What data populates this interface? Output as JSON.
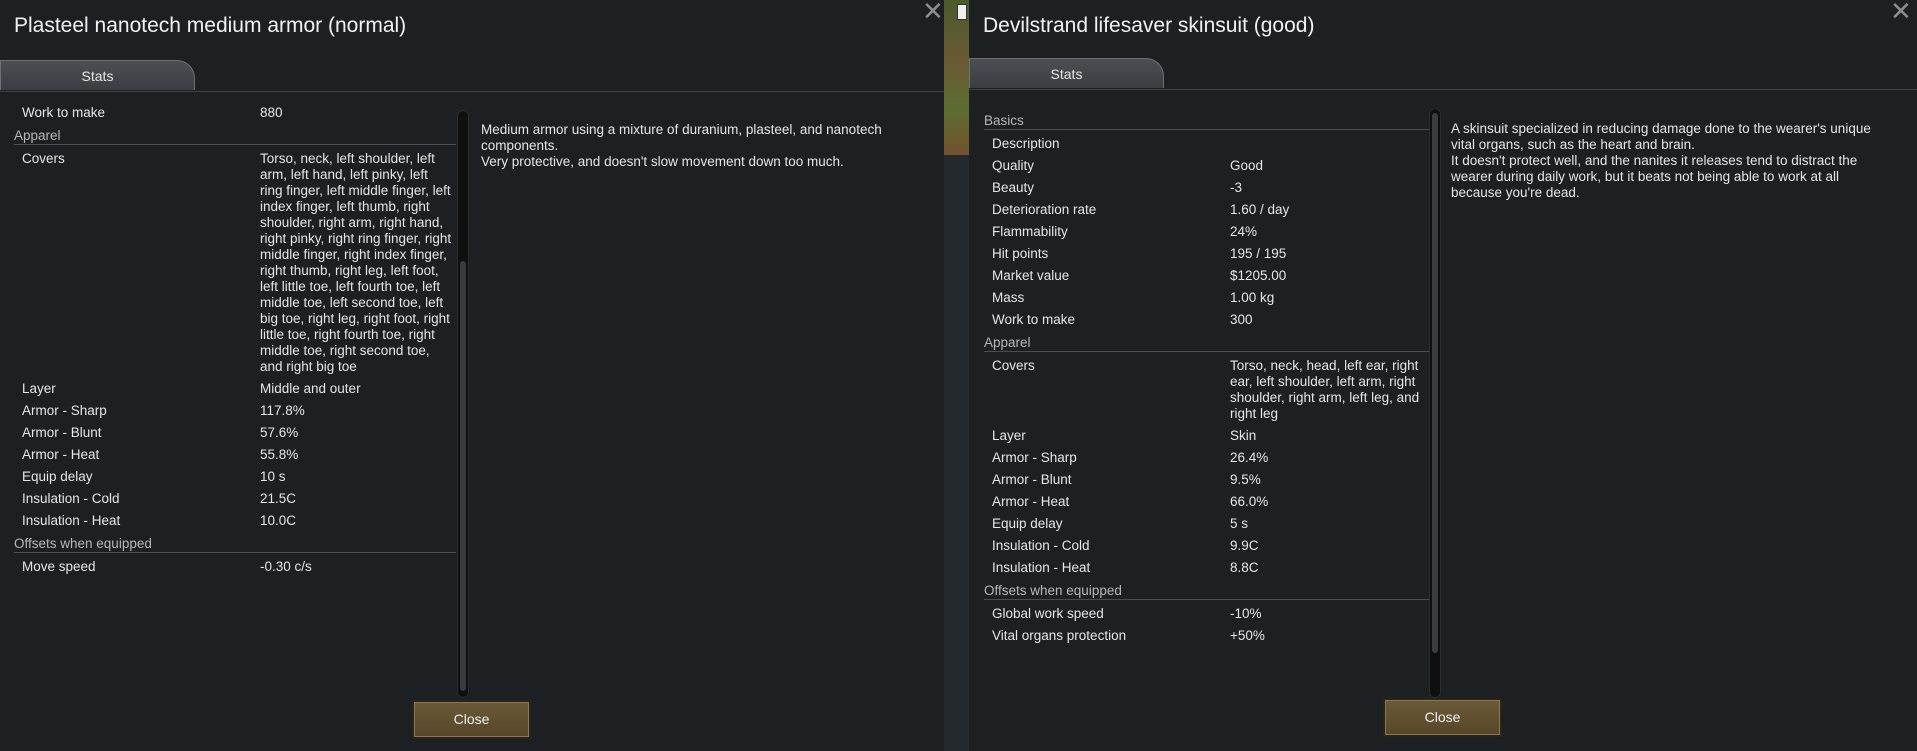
{
  "left": {
    "title": "Plasteel nanotech medium armor (normal)",
    "tab": "Stats",
    "close_label": "Close",
    "close_x": "✕",
    "description": [
      "Medium armor using a mixture of duranium, plasteel, and nanotech components.",
      "Very protective, and doesn't slow movement down too much."
    ],
    "sections": [
      {
        "category": "",
        "rows": [
          {
            "label": "Work to make",
            "value": "880"
          }
        ]
      },
      {
        "category": "Apparel",
        "rows": [
          {
            "label": "Covers",
            "value": "Torso, neck, left shoulder, left arm, left hand, left pinky, left ring finger, left middle finger, left index finger, left thumb, right shoulder, right arm, right hand, right pinky, right ring finger, right middle finger, right index finger, right thumb, right leg, left foot, left little toe, left fourth toe, left middle toe, left second toe, left big toe, right leg, right foot, right little toe, right fourth toe, right middle toe, right second toe, and right big toe"
          },
          {
            "label": "Layer",
            "value": "Middle and outer"
          },
          {
            "label": "Armor - Sharp",
            "value": "117.8%"
          },
          {
            "label": "Armor - Blunt",
            "value": "57.6%"
          },
          {
            "label": "Armor - Heat",
            "value": "55.8%"
          },
          {
            "label": "Equip delay",
            "value": "10 s"
          },
          {
            "label": "Insulation - Cold",
            "value": "21.5C"
          },
          {
            "label": "Insulation - Heat",
            "value": "10.0C"
          }
        ]
      },
      {
        "category": "Offsets when equipped",
        "rows": [
          {
            "label": "Move speed",
            "value": "-0.30 c/s"
          }
        ]
      }
    ]
  },
  "right": {
    "title": "Devilstrand lifesaver skinsuit (good)",
    "tab": "Stats",
    "close_label": "Close",
    "close_x": "✕",
    "description": [
      "A skinsuit specialized in reducing damage done to the wearer's unique vital organs, such as the heart and brain.",
      "It doesn't protect well, and the nanites it releases tend to distract the wearer during daily work, but it beats not being able to work at all because you're dead."
    ],
    "sections": [
      {
        "category": "Basics",
        "rows": [
          {
            "label": "Description",
            "value": ""
          },
          {
            "label": "Quality",
            "value": "Good"
          },
          {
            "label": "Beauty",
            "value": "-3"
          },
          {
            "label": "Deterioration rate",
            "value": "1.60 / day"
          },
          {
            "label": "Flammability",
            "value": "24%"
          },
          {
            "label": "Hit points",
            "value": "195 / 195"
          },
          {
            "label": "Market value",
            "value": "$1205.00"
          },
          {
            "label": "Mass",
            "value": "1.00 kg"
          },
          {
            "label": "Work to make",
            "value": "300"
          }
        ]
      },
      {
        "category": "Apparel",
        "rows": [
          {
            "label": "Covers",
            "value": "Torso, neck, head, left ear, right ear, left shoulder, left arm, right shoulder, right arm, left leg, and right leg"
          },
          {
            "label": "Layer",
            "value": "Skin"
          },
          {
            "label": "Armor - Sharp",
            "value": "26.4%"
          },
          {
            "label": "Armor - Blunt",
            "value": "9.5%"
          },
          {
            "label": "Armor - Heat",
            "value": "66.0%"
          },
          {
            "label": "Equip delay",
            "value": "5 s"
          },
          {
            "label": "Insulation - Cold",
            "value": "9.9C"
          },
          {
            "label": "Insulation - Heat",
            "value": "8.8C"
          }
        ]
      },
      {
        "category": "Offsets when equipped",
        "rows": [
          {
            "label": "Global work speed",
            "value": "-10%"
          },
          {
            "label": "Vital organs protection",
            "value": "+50%"
          }
        ]
      }
    ]
  }
}
